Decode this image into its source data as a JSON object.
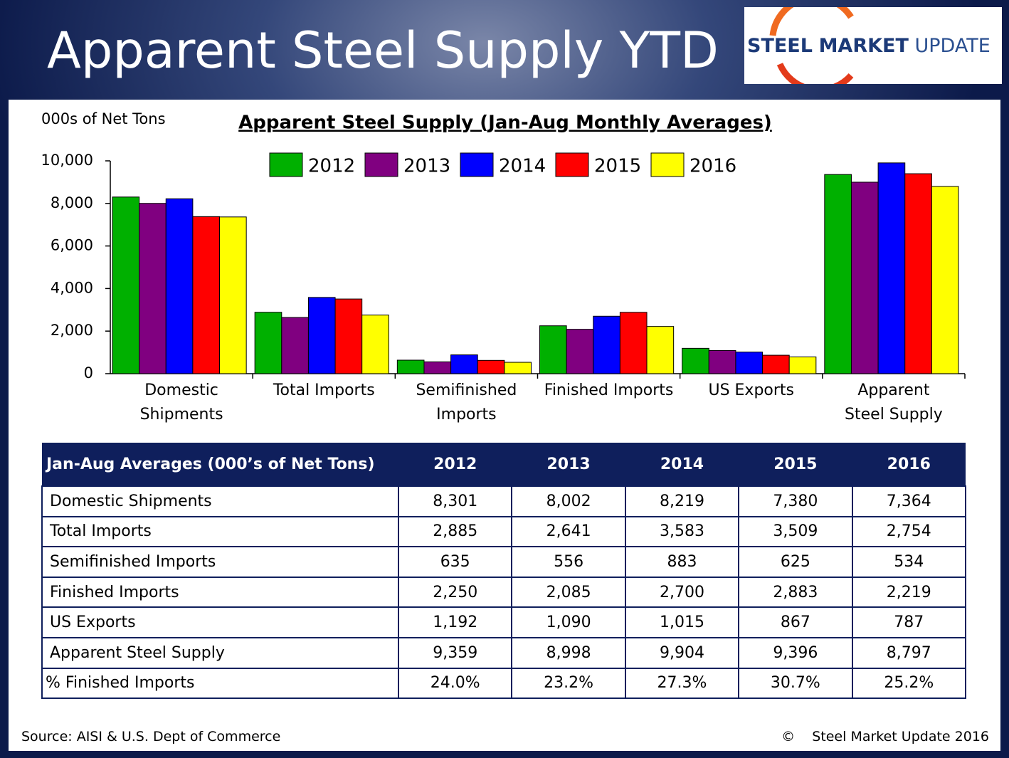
{
  "slide_title": "Apparent Steel Supply YTD",
  "logo": {
    "parts": [
      "STEEL",
      "MARKET",
      "UPDATE"
    ]
  },
  "chart_data": {
    "type": "bar",
    "title": "Apparent Steel Supply (Jan-Aug Monthly Averages)",
    "y_label": "000s of Net Tons",
    "categories": [
      "Domestic Shipments",
      "Total Imports",
      "Semifinished Imports",
      "Finished Imports",
      "US Exports",
      "Apparent Steel Supply"
    ],
    "series": [
      {
        "name": "2012",
        "color": "#00b000",
        "values": [
          8301,
          2885,
          635,
          2250,
          1192,
          9359
        ]
      },
      {
        "name": "2013",
        "color": "#800080",
        "values": [
          8002,
          2641,
          556,
          2085,
          1090,
          8998
        ]
      },
      {
        "name": "2014",
        "color": "#0000ff",
        "values": [
          8219,
          3583,
          883,
          2700,
          1015,
          9904
        ]
      },
      {
        "name": "2015",
        "color": "#ff0000",
        "values": [
          7380,
          3509,
          625,
          2883,
          867,
          9396
        ]
      },
      {
        "name": "2016",
        "color": "#ffff00",
        "values": [
          7364,
          2754,
          534,
          2219,
          787,
          8797
        ]
      }
    ],
    "ylim": [
      0,
      10000
    ],
    "yticks": [
      0,
      {
        "value": 2000,
        "label": "2,000"
      },
      {
        "value": 4000,
        "label": "4,000"
      },
      {
        "value": 6000,
        "label": "6,000"
      },
      {
        "value": 8000,
        "label": "8,000"
      },
      {
        "value": 10000,
        "label": "10,000"
      }
    ],
    "grid": false,
    "legend": "top"
  },
  "table": {
    "header": [
      "Jan-Aug Averages (000’s of Net Tons)",
      "2012",
      "2013",
      "2014",
      "2015",
      "2016"
    ],
    "rows": [
      [
        "Domestic Shipments",
        "8,301",
        "8,002",
        "8,219",
        "7,380",
        "7,364"
      ],
      [
        "Total Imports",
        "2,885",
        "2,641",
        "3,583",
        "3,509",
        "2,754"
      ],
      [
        "Semifinished Imports",
        "635",
        "556",
        "883",
        "625",
        "534"
      ],
      [
        "Finished Imports",
        "2,250",
        "2,085",
        "2,700",
        "2,883",
        "2,219"
      ],
      [
        "US Exports",
        "1,192",
        "1,090",
        "1,015",
        "867",
        "787"
      ],
      [
        "Apparent Steel Supply",
        "9,359",
        "8,998",
        "9,904",
        "9,396",
        "8,797"
      ],
      [
        "% Finished Imports",
        "24.0%",
        "23.2%",
        "27.3%",
        "30.7%",
        "25.2%"
      ]
    ]
  },
  "footer": {
    "source": "Source:  AISI & U.S. Dept of Commerce",
    "copyright": "©    Steel Market Update 2016"
  }
}
